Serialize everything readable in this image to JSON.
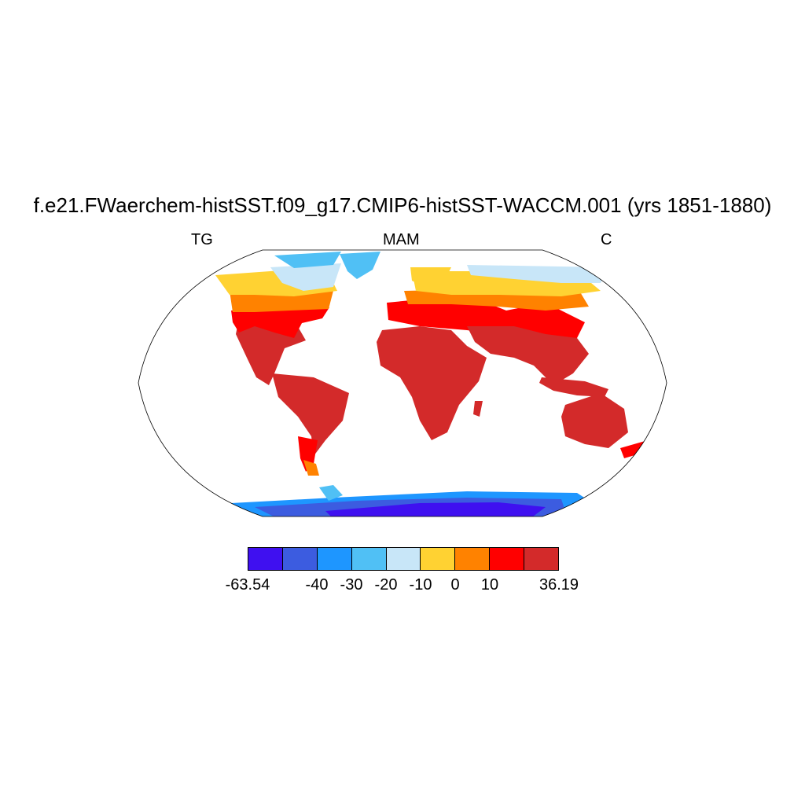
{
  "title": "f.e21.FWaerchem-histSST.f09_g17.CMIP6-histSST-WACCM.001 (yrs 1851-1880)",
  "subtitle_left": "TG",
  "subtitle_center": "MAM",
  "subtitle_right": "C",
  "colorbar": {
    "colors": [
      "#3f10f0",
      "#3c5ce0",
      "#1e96ff",
      "#50c0f5",
      "#c8e6f8",
      "#ffd232",
      "#ff8200",
      "#ff0000",
      "#d32a2a"
    ],
    "labels": [
      "-63.54",
      "-40",
      "-30",
      "-20",
      "-10",
      "0",
      "10",
      "36.19"
    ],
    "label_boundaries": [
      0,
      2,
      3,
      4,
      5,
      6,
      7,
      9
    ]
  },
  "colors": {
    "ocean": "#ffffff",
    "land_outline": "#000000"
  }
}
